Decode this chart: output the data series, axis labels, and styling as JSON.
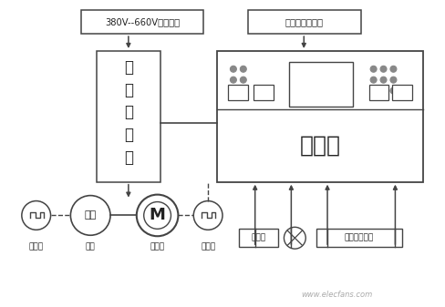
{
  "bg_color": "#ffffff",
  "box_power_label": "380V--660V低压电源",
  "box_control_label": "低压控制电源柜",
  "box_vfd_lines": [
    "变",
    "频",
    "调",
    "速",
    "柜"
  ],
  "box_main_bottom_label": "主控台",
  "encoder1_label": "编码器",
  "drum_label": "滚筒",
  "motor_label": "主电机",
  "encoder2_label": "编码器",
  "hydraulic_label": "液压站",
  "right_label": "远方频率给定",
  "website": "www.elecfans.com",
  "line_color": "#444444",
  "dot_color": "#888888",
  "box_fill": "#ffffff",
  "text_color": "#222222"
}
